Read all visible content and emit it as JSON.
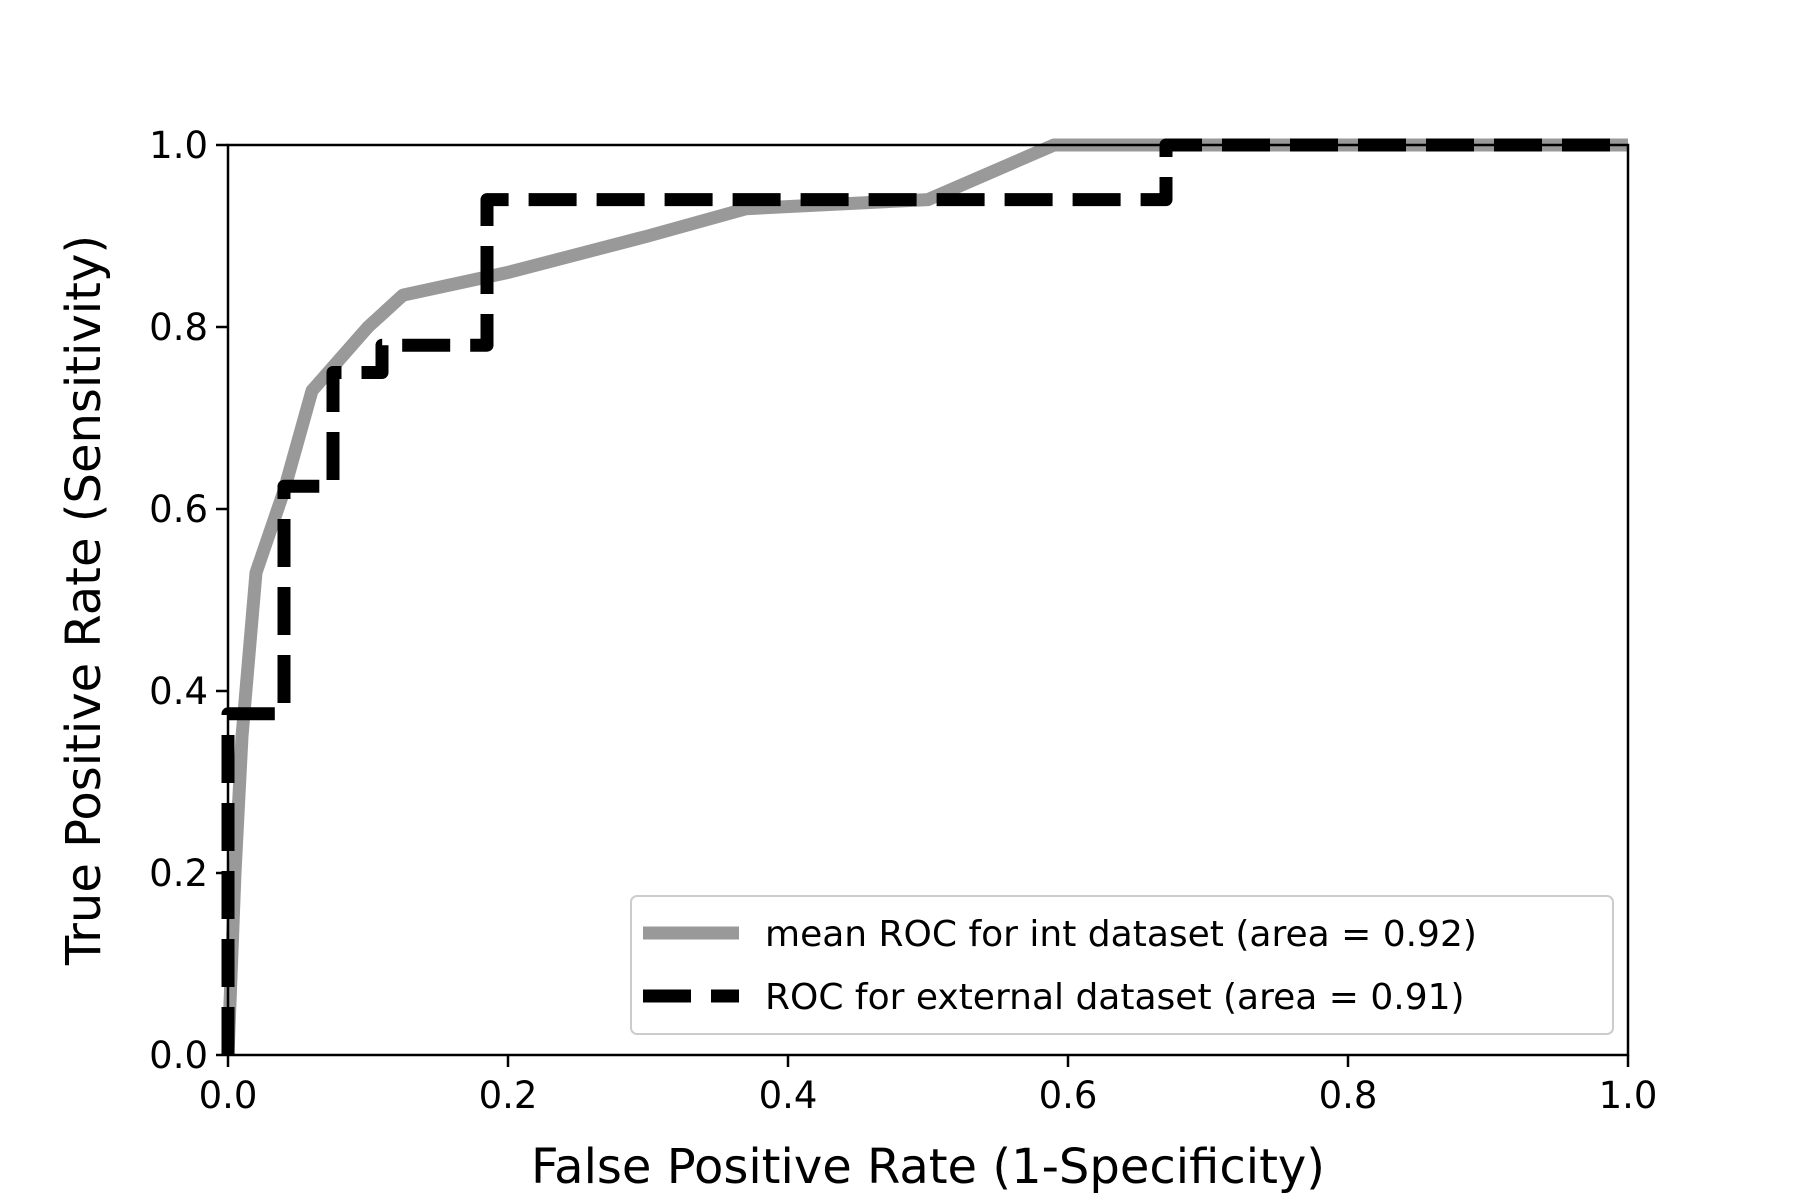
{
  "chart_data": {
    "type": "line",
    "title": "",
    "xlabel": "False Positive Rate (1-Specificity)",
    "ylabel": "True Positive Rate (Sensitivity)",
    "xlim": [
      0.0,
      1.0
    ],
    "ylim": [
      0.0,
      1.0
    ],
    "xticks": [
      "0.0",
      "0.2",
      "0.4",
      "0.6",
      "0.8",
      "1.0"
    ],
    "yticks": [
      "0.0",
      "0.2",
      "0.4",
      "0.6",
      "0.8",
      "1.0"
    ],
    "grid": false,
    "legend_position": "lower-right",
    "series": [
      {
        "name": "mean ROC for int dataset (area = 0.92)",
        "style": "solid",
        "color": "#999999",
        "x": [
          0.0,
          0.005,
          0.01,
          0.02,
          0.04,
          0.06,
          0.1,
          0.125,
          0.2,
          0.3,
          0.37,
          0.5,
          0.59,
          0.67,
          0.8,
          1.0
        ],
        "y": [
          0.0,
          0.2,
          0.35,
          0.53,
          0.62,
          0.73,
          0.8,
          0.835,
          0.86,
          0.9,
          0.93,
          0.94,
          1.0,
          1.0,
          1.0,
          1.0
        ]
      },
      {
        "name": "ROC for external dataset (area = 0.91)",
        "style": "dashed",
        "color": "#000000",
        "x": [
          0.0,
          0.0,
          0.0,
          0.04,
          0.04,
          0.075,
          0.075,
          0.11,
          0.11,
          0.185,
          0.185,
          0.67,
          0.67,
          1.0
        ],
        "y": [
          0.0,
          0.25,
          0.375,
          0.375,
          0.625,
          0.625,
          0.75,
          0.75,
          0.78,
          0.78,
          0.94,
          0.94,
          1.0,
          1.0
        ]
      }
    ]
  }
}
